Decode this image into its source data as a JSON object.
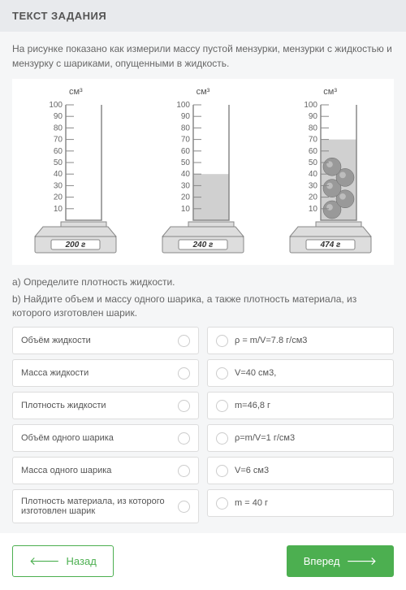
{
  "header": {
    "title": "ТЕКСТ ЗАДАНИЯ"
  },
  "description": "На рисунке показано как измерили массу пустой мензурки, мензурки с жидкостью и мензурку с шариками, опущенными в жидкость.",
  "cylinders": {
    "unit_label": "см³",
    "ticks": [
      100,
      90,
      80,
      70,
      60,
      50,
      40,
      30,
      20,
      10
    ],
    "items": [
      {
        "liquid_level": 0,
        "balls": 0,
        "scale_reading": "200 г"
      },
      {
        "liquid_level": 40,
        "balls": 0,
        "scale_reading": "240 г"
      },
      {
        "liquid_level": 70,
        "balls": 5,
        "scale_reading": "474 г"
      }
    ],
    "colors": {
      "outline": "#888",
      "tick_text": "#666",
      "liquid": "#d0d0d0",
      "ball_fill": "#999",
      "ball_highlight": "#ccc",
      "base": "#ddd",
      "base_outline": "#888",
      "display_bg": "#fff"
    }
  },
  "questions": {
    "a": "a) Определите плотность жидкости.",
    "b": "b) Найдите объем и массу одного шарика, а также плотность материала, из которого изготовлен шарик."
  },
  "left_items": [
    "Объём жидкости",
    "Масса жидкости",
    "Плотность жидкости",
    "Объём одного шарика",
    "Масса одного шарика",
    "Плотность материала, из которого изготовлен шарик"
  ],
  "right_items": [
    "ρ = m/V=7.8 г/см3",
    "V=40 см3,",
    "m=46,8 г",
    "ρ=m/V=1 г/см3",
    "V=6 см3",
    "m = 40 г"
  ],
  "buttons": {
    "back": "Назад",
    "next": "Вперед"
  }
}
